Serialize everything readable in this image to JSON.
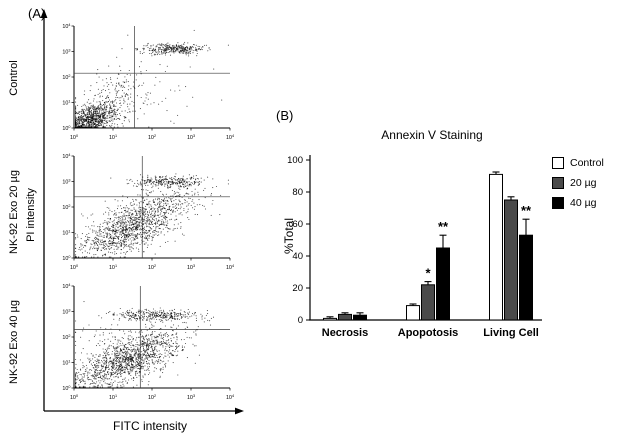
{
  "figure": {
    "panel_a_label": "(A)",
    "panel_b_label": "(B)"
  },
  "chart_data": [
    {
      "type": "bar",
      "title": "Annexin V Staining",
      "ylabel": "%Total",
      "xlabel": "",
      "ylim": [
        0,
        100
      ],
      "yticks": [
        0,
        20,
        40,
        60,
        80,
        100
      ],
      "grid": false,
      "legend_position": "right",
      "categories": [
        "Necrosis",
        "Apopotosis",
        "Living Cell"
      ],
      "series": [
        {
          "name": "Control",
          "color": "#ffffff",
          "values": [
            1,
            9,
            91
          ],
          "errors": [
            1,
            1,
            1.5
          ],
          "sig": [
            "",
            "",
            ""
          ]
        },
        {
          "name": "20 µg",
          "color": "#4a4a4a",
          "values": [
            3.5,
            22,
            75
          ],
          "errors": [
            1,
            2,
            2
          ],
          "sig": [
            "",
            "*",
            ""
          ]
        },
        {
          "name": "40 µg",
          "color": "#000000",
          "values": [
            3,
            45,
            53
          ],
          "errors": [
            1.5,
            8,
            10
          ],
          "sig": [
            "",
            "**",
            "**"
          ]
        }
      ]
    },
    {
      "type": "scatter",
      "title": "Control",
      "xlabel": "FITC intensity",
      "ylabel": "PI intensity",
      "xscale": "log10_exponent",
      "yscale": "log10_exponent",
      "xlim": [
        0,
        4
      ],
      "ylim": [
        0,
        4
      ],
      "ticks_exponents": [
        0,
        1,
        2,
        3,
        4
      ],
      "gate": {
        "x": 1.55,
        "y": 2.15
      },
      "clusters": [
        {
          "cx": 0.45,
          "cy": 0.35,
          "sx": 0.3,
          "sy": 0.28,
          "rho": 0.35,
          "n": 750
        },
        {
          "cx": 0.85,
          "cy": 0.95,
          "sx": 0.5,
          "sy": 0.55,
          "rho": 0.45,
          "n": 280
        },
        {
          "cx": 2.55,
          "cy": 3.1,
          "sx": 0.42,
          "sy": 0.1,
          "rho": 0,
          "n": 340
        },
        {
          "cx": 2.1,
          "cy": 1.6,
          "sx": 0.9,
          "sy": 0.9,
          "rho": 0,
          "n": 50
        }
      ]
    },
    {
      "type": "scatter",
      "title": "NK-92 Exo 20 µg",
      "xlabel": "FITC intensity",
      "ylabel": "PI intensity",
      "xscale": "log10_exponent",
      "yscale": "log10_exponent",
      "xlim": [
        0,
        4
      ],
      "ylim": [
        0,
        4
      ],
      "ticks_exponents": [
        0,
        1,
        2,
        3,
        4
      ],
      "gate": {
        "x": 1.75,
        "y": 2.4
      },
      "clusters": [
        {
          "cx": 1.35,
          "cy": 1.05,
          "sx": 0.6,
          "sy": 0.5,
          "rho": 0.55,
          "n": 950
        },
        {
          "cx": 2.0,
          "cy": 1.9,
          "sx": 0.55,
          "sy": 0.5,
          "rho": 0.45,
          "n": 330
        },
        {
          "cx": 2.35,
          "cy": 3.0,
          "sx": 0.48,
          "sy": 0.1,
          "rho": 0,
          "n": 270
        },
        {
          "cx": 2.7,
          "cy": 2.4,
          "sx": 0.45,
          "sy": 0.35,
          "rho": 0,
          "n": 90
        }
      ]
    },
    {
      "type": "scatter",
      "title": "NK-92 Exo 40 µg",
      "xlabel": "FITC intensity",
      "ylabel": "PI intensity",
      "xscale": "log10_exponent",
      "yscale": "log10_exponent",
      "xlim": [
        0,
        4
      ],
      "ylim": [
        0,
        4
      ],
      "ticks_exponents": [
        0,
        1,
        2,
        3,
        4
      ],
      "gate": {
        "x": 1.7,
        "y": 2.3
      },
      "clusters": [
        {
          "cx": 1.25,
          "cy": 0.95,
          "sx": 0.65,
          "sy": 0.5,
          "rho": 0.6,
          "n": 1050
        },
        {
          "cx": 2.05,
          "cy": 1.75,
          "sx": 0.55,
          "sy": 0.45,
          "rho": 0.5,
          "n": 330
        },
        {
          "cx": 2.15,
          "cy": 2.85,
          "sx": 0.55,
          "sy": 0.1,
          "rho": 0,
          "n": 320
        },
        {
          "cx": 0.9,
          "cy": 1.9,
          "sx": 0.5,
          "sy": 0.5,
          "rho": 0,
          "n": 70
        }
      ]
    }
  ]
}
